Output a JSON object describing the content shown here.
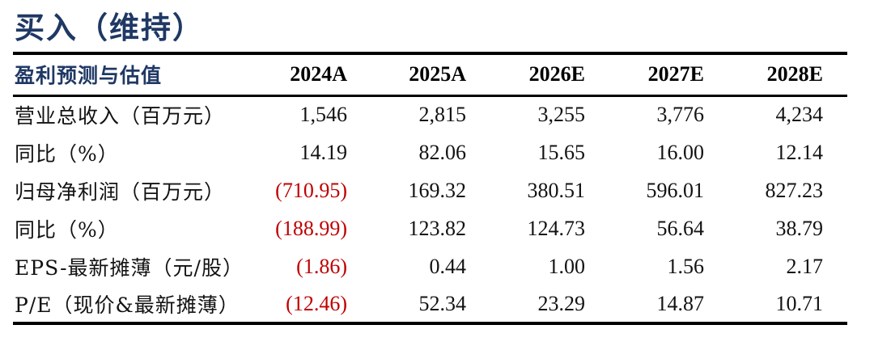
{
  "colors": {
    "navy": "#1F3864",
    "negative_red": "#C00000",
    "line_black": "#000000",
    "background": "#FFFFFF"
  },
  "rating": {
    "title": "买入（维持）"
  },
  "table": {
    "header": {
      "label": "盈利预测与估值",
      "columns": [
        "2024A",
        "2025A",
        "2026E",
        "2027E",
        "2028E"
      ]
    },
    "rows": [
      {
        "label": "营业总收入（百万元）",
        "values": [
          "1,546",
          "2,815",
          "3,255",
          "3,776",
          "4,234"
        ]
      },
      {
        "label": "同比（%）",
        "values": [
          "14.19",
          "82.06",
          "15.65",
          "16.00",
          "12.14"
        ]
      },
      {
        "label": "归母净利润（百万元）",
        "values": [
          "(710.95)",
          "169.32",
          "380.51",
          "596.01",
          "827.23"
        ]
      },
      {
        "label": "同比（%）",
        "values": [
          "(188.99)",
          "123.82",
          "124.73",
          "56.64",
          "38.79"
        ]
      },
      {
        "label": "EPS-最新摊薄（元/股）",
        "values": [
          "(1.86)",
          "0.44",
          "1.00",
          "1.56",
          "2.17"
        ]
      },
      {
        "label": "P/E（现价&最新摊薄）",
        "values": [
          "(12.46)",
          "52.34",
          "23.29",
          "14.87",
          "10.71"
        ]
      }
    ]
  },
  "chart_data": {
    "type": "table",
    "title": "盈利预测与估值",
    "categories": [
      "2024A",
      "2025A",
      "2026E",
      "2027E",
      "2028E"
    ],
    "series": [
      {
        "name": "营业总收入（百万元）",
        "values": [
          1546,
          2815,
          3255,
          3776,
          4234
        ]
      },
      {
        "name": "同比（%）",
        "values": [
          14.19,
          82.06,
          15.65,
          16.0,
          12.14
        ]
      },
      {
        "name": "归母净利润（百万元）",
        "values": [
          -710.95,
          169.32,
          380.51,
          596.01,
          827.23
        ]
      },
      {
        "name": "同比（%）",
        "values": [
          -188.99,
          123.82,
          124.73,
          56.64,
          38.79
        ]
      },
      {
        "name": "EPS-最新摊薄（元/股）",
        "values": [
          -1.86,
          0.44,
          1.0,
          1.56,
          2.17
        ]
      },
      {
        "name": "P/E（现价&最新摊薄）",
        "values": [
          -12.46,
          52.34,
          23.29,
          14.87,
          10.71
        ]
      }
    ]
  }
}
